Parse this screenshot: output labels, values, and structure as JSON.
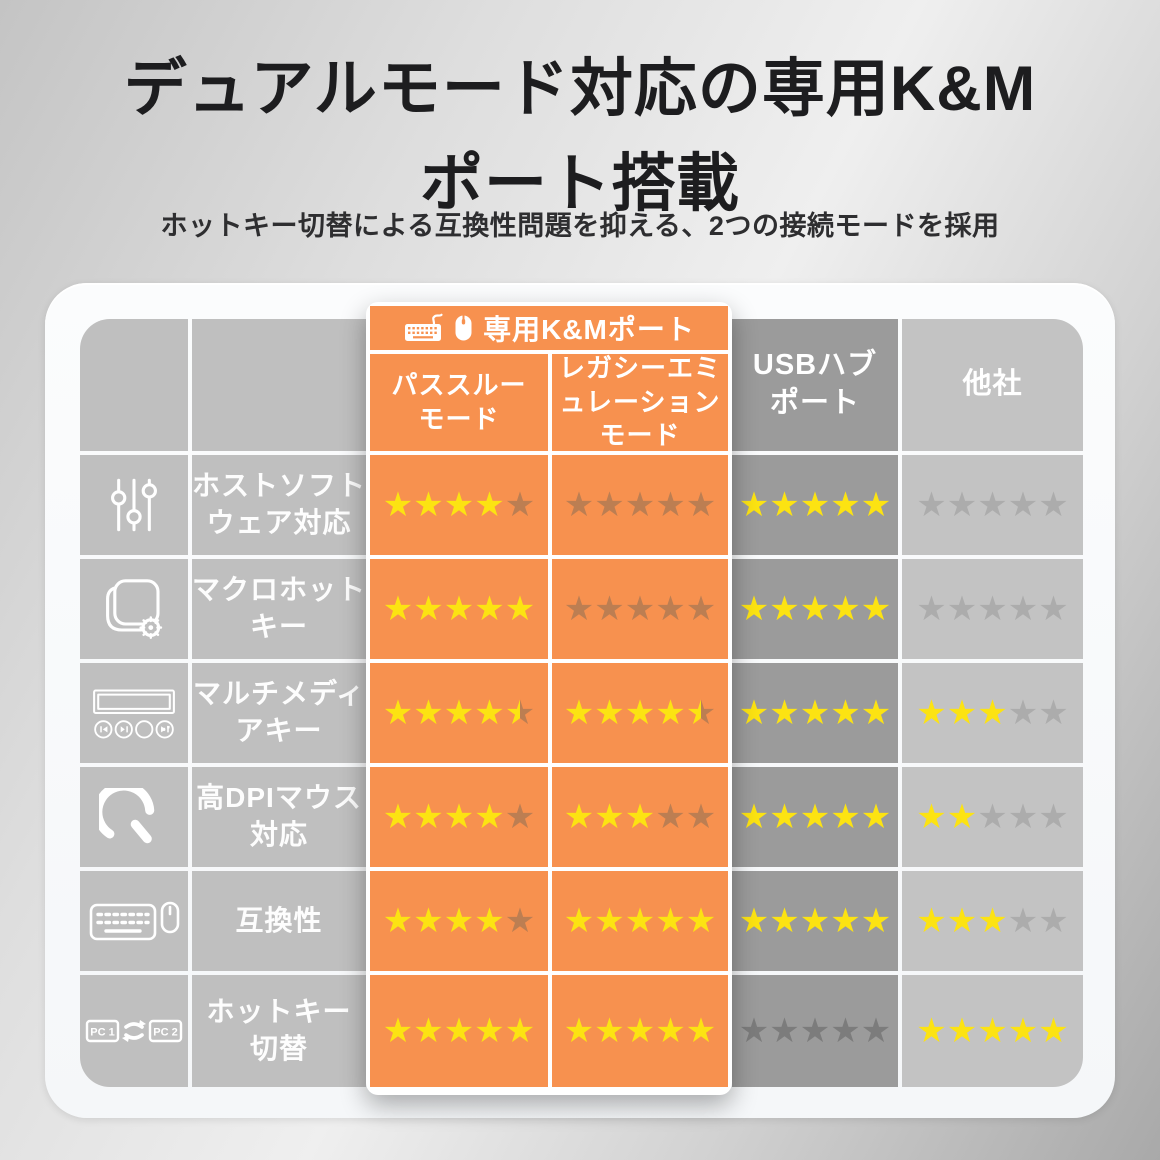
{
  "title_line1": "デュアルモード対応の専用K&M",
  "title_line2": "ポート搭載",
  "subtitle": "ホットキー切替による互換性問題を抑える、2つの接続モードを採用",
  "table": {
    "km_header": {
      "label": "専用K&Mポート",
      "icons": [
        "keyboard-icon",
        "mouse-icon"
      ]
    },
    "columns": [
      {
        "id": "passthrough",
        "label": "パススルー\nモード"
      },
      {
        "id": "legacy",
        "label": "レガシーエミ\nュレーション\nモード"
      },
      {
        "id": "usb_hub",
        "label": "USBハブ\nポート"
      },
      {
        "id": "other",
        "label": "他社"
      }
    ],
    "rows": [
      {
        "icon": "equalizer-sliders-icon",
        "label": "ホストソフト\nウェア対応",
        "ratings": {
          "passthrough": 4,
          "legacy": 0,
          "usb_hub": 5,
          "other": 0
        }
      },
      {
        "icon": "macro-key-icon",
        "label": "マクロホット\nキー",
        "ratings": {
          "passthrough": 5,
          "legacy": 0,
          "usb_hub": 5,
          "other": 0
        }
      },
      {
        "icon": "multimedia-keys-icon",
        "label": "マルチメディ\nアキー",
        "ratings": {
          "passthrough": 4.5,
          "legacy": 4.5,
          "usb_hub": 5,
          "other": 3
        }
      },
      {
        "icon": "speedometer-icon",
        "label": "高DPIマウス\n対応",
        "ratings": {
          "passthrough": 4,
          "legacy": 3,
          "usb_hub": 5,
          "other": 2
        }
      },
      {
        "icon": "keyboard-mouse-icon",
        "label": "互換性",
        "ratings": {
          "passthrough": 4,
          "legacy": 5,
          "usb_hub": 5,
          "other": 3
        }
      },
      {
        "icon": "pc-switch-icon",
        "label": "ホットキー\n切替",
        "ratings": {
          "passthrough": 5,
          "legacy": 5,
          "usb_hub": 0,
          "other": 5
        }
      }
    ],
    "max_stars": 5,
    "pc_switch_labels": [
      "PC 1",
      "PC 2"
    ]
  },
  "colors": {
    "orange": "#F7914F",
    "star_yellow": "#FCE312",
    "star_empty_on_orange": "#BC7E52",
    "star_empty_on_dark": "#7C7C7C",
    "star_empty_on_light": "#ACACAC",
    "usb_column_gray": "#9B9B9B",
    "other_column_gray": "#C3C3C3",
    "label_column_gray": "#BFBFBF"
  }
}
